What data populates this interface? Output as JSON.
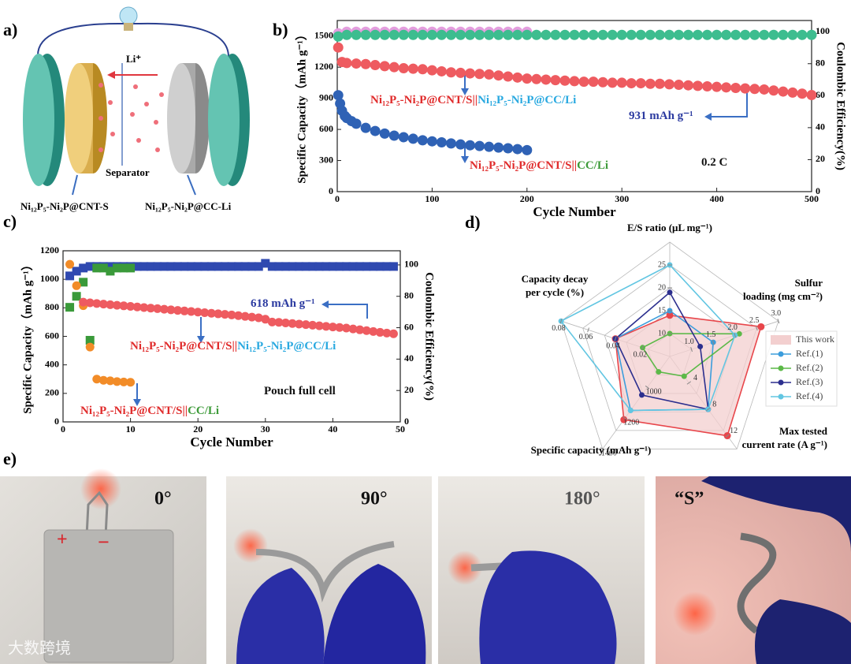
{
  "panel_labels": [
    "a)",
    "b)",
    "c)",
    "d)",
    "e)"
  ],
  "schematic": {
    "ion": "Li⁺",
    "separator": "Separator",
    "cathode": "Ni₁₂P₅-Ni₂P@CNT-S",
    "anode": "Ni₁₂P₅-Ni₂P@CC-Li"
  },
  "photos": {
    "angles": [
      "0°",
      "90°",
      "180°",
      "“S”"
    ],
    "plus": "+",
    "minus": "−",
    "watermark": "大数跨境"
  },
  "chart_data": [
    {
      "type": "cycling",
      "xlabel": "Cycle Number",
      "ylabel": "Specific Capacity（mAh g⁻¹）",
      "y2label": "Coulombic Efficiency(%)",
      "xlim": [
        0,
        500
      ],
      "xticks": [
        0,
        100,
        200,
        300,
        400,
        500
      ],
      "ylim": [
        0,
        1650
      ],
      "yticks": [
        0,
        300,
        600,
        900,
        1200,
        1500
      ],
      "y2lim": [
        0,
        107
      ],
      "y2ticks": [
        0,
        20,
        40,
        60,
        80,
        100
      ],
      "series": [
        {
          "color": "#e49ede",
          "marker": "circle",
          "axis": "y2",
          "x": [
            1,
            10,
            20,
            30,
            40,
            50,
            60,
            70,
            80,
            90,
            100,
            110,
            120,
            130,
            140,
            150,
            160,
            170,
            180,
            190,
            200
          ],
          "values": [
            99,
            100,
            100,
            100,
            100,
            100,
            100,
            100,
            100,
            100,
            100,
            100,
            100,
            100,
            100,
            100,
            100,
            100,
            100,
            100,
            100
          ]
        },
        {
          "color": "#3dbd8f",
          "marker": "circle",
          "axis": "y2",
          "x": [
            1,
            10,
            20,
            30,
            40,
            50,
            60,
            70,
            80,
            90,
            100,
            110,
            120,
            130,
            140,
            150,
            160,
            170,
            180,
            190,
            200,
            210,
            220,
            230,
            240,
            250,
            260,
            270,
            280,
            290,
            300,
            310,
            320,
            330,
            340,
            350,
            360,
            370,
            380,
            390,
            400,
            410,
            420,
            430,
            440,
            450,
            460,
            470,
            480,
            490,
            500
          ],
          "values": [
            97,
            98,
            98,
            98,
            98,
            98,
            98,
            98,
            98,
            98,
            98,
            98,
            98,
            98,
            98,
            98,
            98,
            98,
            98,
            98,
            98,
            98,
            98,
            98,
            98,
            98,
            98,
            98,
            98,
            98,
            98,
            98,
            98,
            98,
            98,
            98,
            98,
            98,
            98,
            98,
            98,
            98,
            98,
            98,
            98,
            98,
            98,
            98,
            98,
            98,
            98
          ]
        },
        {
          "color": "#ee5b60",
          "marker": "circle",
          "x": [
            1,
            5,
            10,
            20,
            30,
            40,
            50,
            60,
            70,
            80,
            90,
            100,
            110,
            120,
            130,
            140,
            150,
            160,
            170,
            180,
            190,
            200,
            210,
            220,
            230,
            240,
            250,
            260,
            270,
            280,
            290,
            300,
            310,
            320,
            330,
            340,
            350,
            360,
            370,
            380,
            390,
            400,
            410,
            420,
            430,
            440,
            450,
            460,
            470,
            480,
            490,
            500
          ],
          "values": [
            1390,
            1250,
            1240,
            1235,
            1230,
            1220,
            1210,
            1200,
            1190,
            1185,
            1180,
            1170,
            1160,
            1150,
            1145,
            1140,
            1135,
            1130,
            1120,
            1110,
            1100,
            1090,
            1085,
            1080,
            1075,
            1070,
            1065,
            1060,
            1060,
            1055,
            1050,
            1050,
            1045,
            1045,
            1040,
            1040,
            1035,
            1030,
            1025,
            1020,
            1015,
            1010,
            1005,
            1000,
            995,
            990,
            985,
            975,
            965,
            955,
            945,
            931
          ]
        },
        {
          "color": "#2f62b5",
          "marker": "circle",
          "x": [
            1,
            3,
            5,
            8,
            10,
            15,
            20,
            30,
            40,
            50,
            60,
            70,
            80,
            90,
            100,
            110,
            120,
            130,
            140,
            150,
            160,
            170,
            180,
            190,
            200
          ],
          "values": [
            930,
            850,
            780,
            730,
            710,
            680,
            655,
            615,
            585,
            560,
            540,
            525,
            510,
            495,
            485,
            475,
            465,
            455,
            447,
            440,
            432,
            425,
            418,
            410,
            400
          ]
        }
      ],
      "annotations": [
        {
          "parts": [
            {
              "text": "Ni₁₂P₅-Ni₂P@CNT/S||",
              "color": "#e02b2b"
            },
            {
              "text": "Ni₁₂P₅-Ni₂P@CC/Li",
              "color": "#29a9e0"
            }
          ]
        },
        {
          "parts": [
            {
              "text": "Ni₁₂P₅-Ni₂P@CNT/S||",
              "color": "#e02b2b"
            },
            {
              "text": "CC/Li",
              "color": "#3e9b3a"
            }
          ]
        },
        {
          "parts": [
            {
              "text": "931 mAh g⁻¹",
              "color": "#2b3aa0"
            }
          ]
        },
        {
          "parts": [
            {
              "text": "0.2 C",
              "color": "#111111"
            }
          ]
        }
      ]
    },
    {
      "type": "cycling",
      "xlabel": "Cycle Number",
      "ylabel": "Specific Capacity（mAh g⁻¹）",
      "y2label": "Coulombic Efficiency(%)",
      "xlim": [
        0,
        50
      ],
      "xticks": [
        0,
        10,
        20,
        30,
        40,
        50
      ],
      "ylim": [
        0,
        1200
      ],
      "yticks": [
        0,
        200,
        400,
        600,
        800,
        1000,
        1200
      ],
      "y2lim": [
        0,
        109
      ],
      "y2ticks": [
        0,
        20,
        40,
        60,
        80,
        100
      ],
      "series": [
        {
          "color": "#2f49b0",
          "marker": "square",
          "axis": "y2",
          "x": [
            1,
            2,
            3,
            4,
            5,
            6,
            7,
            8,
            9,
            10,
            11,
            12,
            13,
            14,
            15,
            16,
            17,
            18,
            19,
            20,
            21,
            22,
            23,
            24,
            25,
            26,
            27,
            28,
            29,
            30,
            31,
            32,
            33,
            34,
            35,
            36,
            37,
            38,
            39,
            40,
            41,
            42,
            43,
            44,
            45,
            46,
            47,
            48,
            49
          ],
          "values": [
            93,
            96,
            98,
            99,
            99,
            99,
            99,
            99,
            99,
            99,
            99,
            99,
            99,
            99,
            99,
            99,
            99,
            99,
            99,
            99,
            99,
            99,
            99,
            99,
            99,
            99,
            99,
            99,
            99,
            101,
            99,
            99,
            99,
            99,
            99,
            99,
            99,
            99,
            99,
            99,
            99,
            99,
            99,
            99,
            99,
            99,
            99,
            99,
            99
          ]
        },
        {
          "color": "#3a9a3a",
          "marker": "square",
          "axis": "y2",
          "x": [
            1,
            2,
            3,
            4,
            5,
            6,
            7,
            8,
            9,
            10
          ],
          "values": [
            73,
            80,
            89,
            52,
            98,
            98,
            96,
            98,
            98,
            98
          ]
        },
        {
          "color": "#f28c28",
          "marker": "circle",
          "x": [
            1,
            2,
            3,
            4,
            5,
            6,
            7,
            8,
            9,
            10
          ],
          "values": [
            1105,
            955,
            815,
            525,
            300,
            292,
            288,
            283,
            280,
            278
          ]
        },
        {
          "color": "#ee5b60",
          "marker": "circle",
          "x": [
            3,
            4,
            5,
            6,
            7,
            8,
            9,
            10,
            11,
            12,
            13,
            14,
            15,
            16,
            17,
            18,
            19,
            20,
            21,
            22,
            23,
            24,
            25,
            26,
            27,
            28,
            29,
            30,
            31,
            32,
            33,
            34,
            35,
            36,
            37,
            38,
            39,
            40,
            41,
            42,
            43,
            44,
            45,
            46,
            47,
            48,
            49
          ],
          "values": [
            840,
            835,
            830,
            826,
            822,
            818,
            814,
            810,
            806,
            802,
            798,
            794,
            790,
            786,
            782,
            778,
            774,
            770,
            766,
            762,
            758,
            754,
            750,
            745,
            740,
            735,
            730,
            720,
            700,
            698,
            694,
            690,
            686,
            682,
            678,
            674,
            670,
            666,
            662,
            658,
            652,
            646,
            640,
            634,
            628,
            623,
            618
          ]
        }
      ],
      "annotations": [
        {
          "parts": [
            {
              "text": "618 mAh g⁻¹",
              "color": "#2b3aa0"
            }
          ]
        },
        {
          "parts": [
            {
              "text": "Ni₁₂P₅-Ni₂P@CNT/S||",
              "color": "#e02b2b"
            },
            {
              "text": "Ni₁₂P₅-Ni₂P@CC/Li",
              "color": "#29a9e0"
            }
          ]
        },
        {
          "parts": [
            {
              "text": "Pouch full cell",
              "color": "#111111"
            }
          ]
        },
        {
          "parts": [
            {
              "text": "Ni₁₂P₅-Ni₂P@CNT/S||",
              "color": "#e02b2b"
            },
            {
              "text": "CC/Li",
              "color": "#3e9b3a"
            }
          ]
        }
      ]
    },
    {
      "type": "radar",
      "axes": [
        {
          "name": [
            "E/S ratio (μL  mg⁻¹)"
          ],
          "range": [
            5,
            30
          ],
          "ticks": [
            10,
            15,
            20,
            25
          ]
        },
        {
          "name": [
            "Sulfur",
            "loading (mg cm⁻²)"
          ],
          "range": [
            0.5,
            3
          ],
          "ticks": [
            {
              "value": 1,
              "label": "1.0"
            },
            1.5,
            {
              "value": 2,
              "label": "2.0"
            },
            2.5,
            {
              "value": 3,
              "label": "3.0"
            }
          ]
        },
        {
          "name": [
            "Max tested",
            "current rate (A g⁻¹)"
          ],
          "range": [
            0,
            14
          ],
          "ticks": [
            4,
            8,
            12
          ]
        },
        {
          "name": [
            "Specific capacity (mAh g⁻¹)"
          ],
          "range": [
            800,
            1400
          ],
          "ticks": [
            1000,
            1200,
            1400
          ]
        },
        {
          "name": [
            "Capacity decay",
            "per cycle (%)"
          ],
          "range": [
            0,
            0.08
          ],
          "ticks": [
            0.02,
            0.04,
            0.06,
            0.08
          ]
        }
      ],
      "series": [
        {
          "name": "This work",
          "color": "#e8464b",
          "fill": "#f3cfcf",
          "values": [
            14,
            2.6,
            12,
            1210,
            0.04
          ]
        },
        {
          "name": "Ref.(1)",
          "color": "#3c9ddc",
          "values": [
            15,
            1.5,
            8,
            1150,
            0.04
          ]
        },
        {
          "name": "Ref.(2)",
          "color": "#5cb948",
          "values": [
            10,
            2.1,
            3,
            900,
            0.02
          ]
        },
        {
          "name": "Ref.(3)",
          "color": "#2c2f8e",
          "values": [
            19,
            1.2,
            8,
            1050,
            0.04
          ]
        },
        {
          "name": "Ref.(4)",
          "color": "#62c6e2",
          "values": [
            25,
            2,
            8,
            1150,
            0.08
          ]
        }
      ]
    }
  ]
}
